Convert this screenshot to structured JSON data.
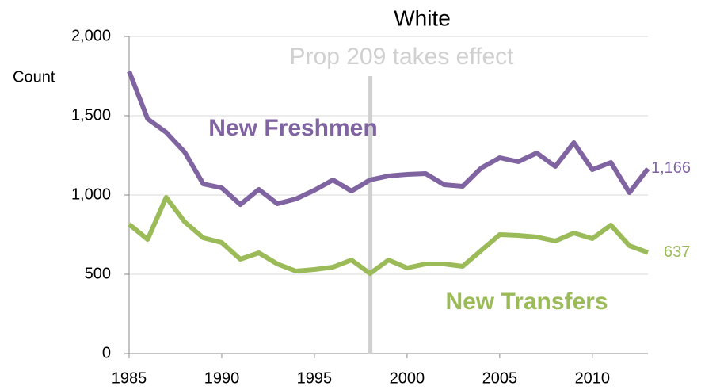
{
  "chart_data": {
    "type": "line",
    "title": "White",
    "y_label": "Count",
    "x": [
      1985,
      1986,
      1987,
      1988,
      1989,
      1990,
      1991,
      1992,
      1993,
      1994,
      1995,
      1996,
      1997,
      1998,
      1999,
      2000,
      2001,
      2002,
      2003,
      2004,
      2005,
      2006,
      2007,
      2008,
      2009,
      2010,
      2011,
      2012,
      2013
    ],
    "series": [
      {
        "name": "New Freshmen",
        "color": "#8064a2",
        "values": [
          1780,
          1480,
          1395,
          1270,
          1070,
          1045,
          940,
          1035,
          945,
          975,
          1030,
          1095,
          1025,
          1095,
          1120,
          1130,
          1135,
          1065,
          1055,
          1170,
          1235,
          1210,
          1265,
          1180,
          1330,
          1160,
          1205,
          1015,
          1166
        ],
        "value_labels": [
          null,
          null,
          null,
          null,
          null,
          null,
          null,
          null,
          null,
          null,
          null,
          null,
          null,
          null,
          null,
          null,
          null,
          null,
          null,
          null,
          null,
          null,
          null,
          null,
          null,
          null,
          null,
          null,
          "1,166"
        ]
      },
      {
        "name": "New Transfers",
        "color": "#9bbb59",
        "values": [
          815,
          720,
          985,
          830,
          730,
          700,
          595,
          635,
          565,
          520,
          530,
          545,
          590,
          505,
          590,
          540,
          565,
          565,
          550,
          650,
          750,
          745,
          735,
          710,
          760,
          725,
          810,
          680,
          637
        ],
        "value_labels": [
          null,
          null,
          null,
          null,
          null,
          null,
          null,
          null,
          null,
          null,
          null,
          null,
          null,
          null,
          null,
          null,
          null,
          null,
          null,
          null,
          null,
          null,
          null,
          null,
          null,
          null,
          null,
          null,
          "637"
        ]
      }
    ],
    "annotation": {
      "text": "Prop 209 takes effect",
      "x": 1998,
      "color": "#d0d0d0"
    },
    "xlim": [
      1985,
      2013
    ],
    "xticks": [
      1985,
      1990,
      1995,
      2000,
      2005,
      2010
    ],
    "ylim": [
      0,
      2000
    ],
    "yticks": [
      0,
      500,
      {
        "value": 1000,
        "label": "1,000"
      },
      {
        "value": 1500,
        "label": "1,500"
      },
      {
        "value": 2000,
        "label": "2,000"
      }
    ],
    "grid": true
  }
}
